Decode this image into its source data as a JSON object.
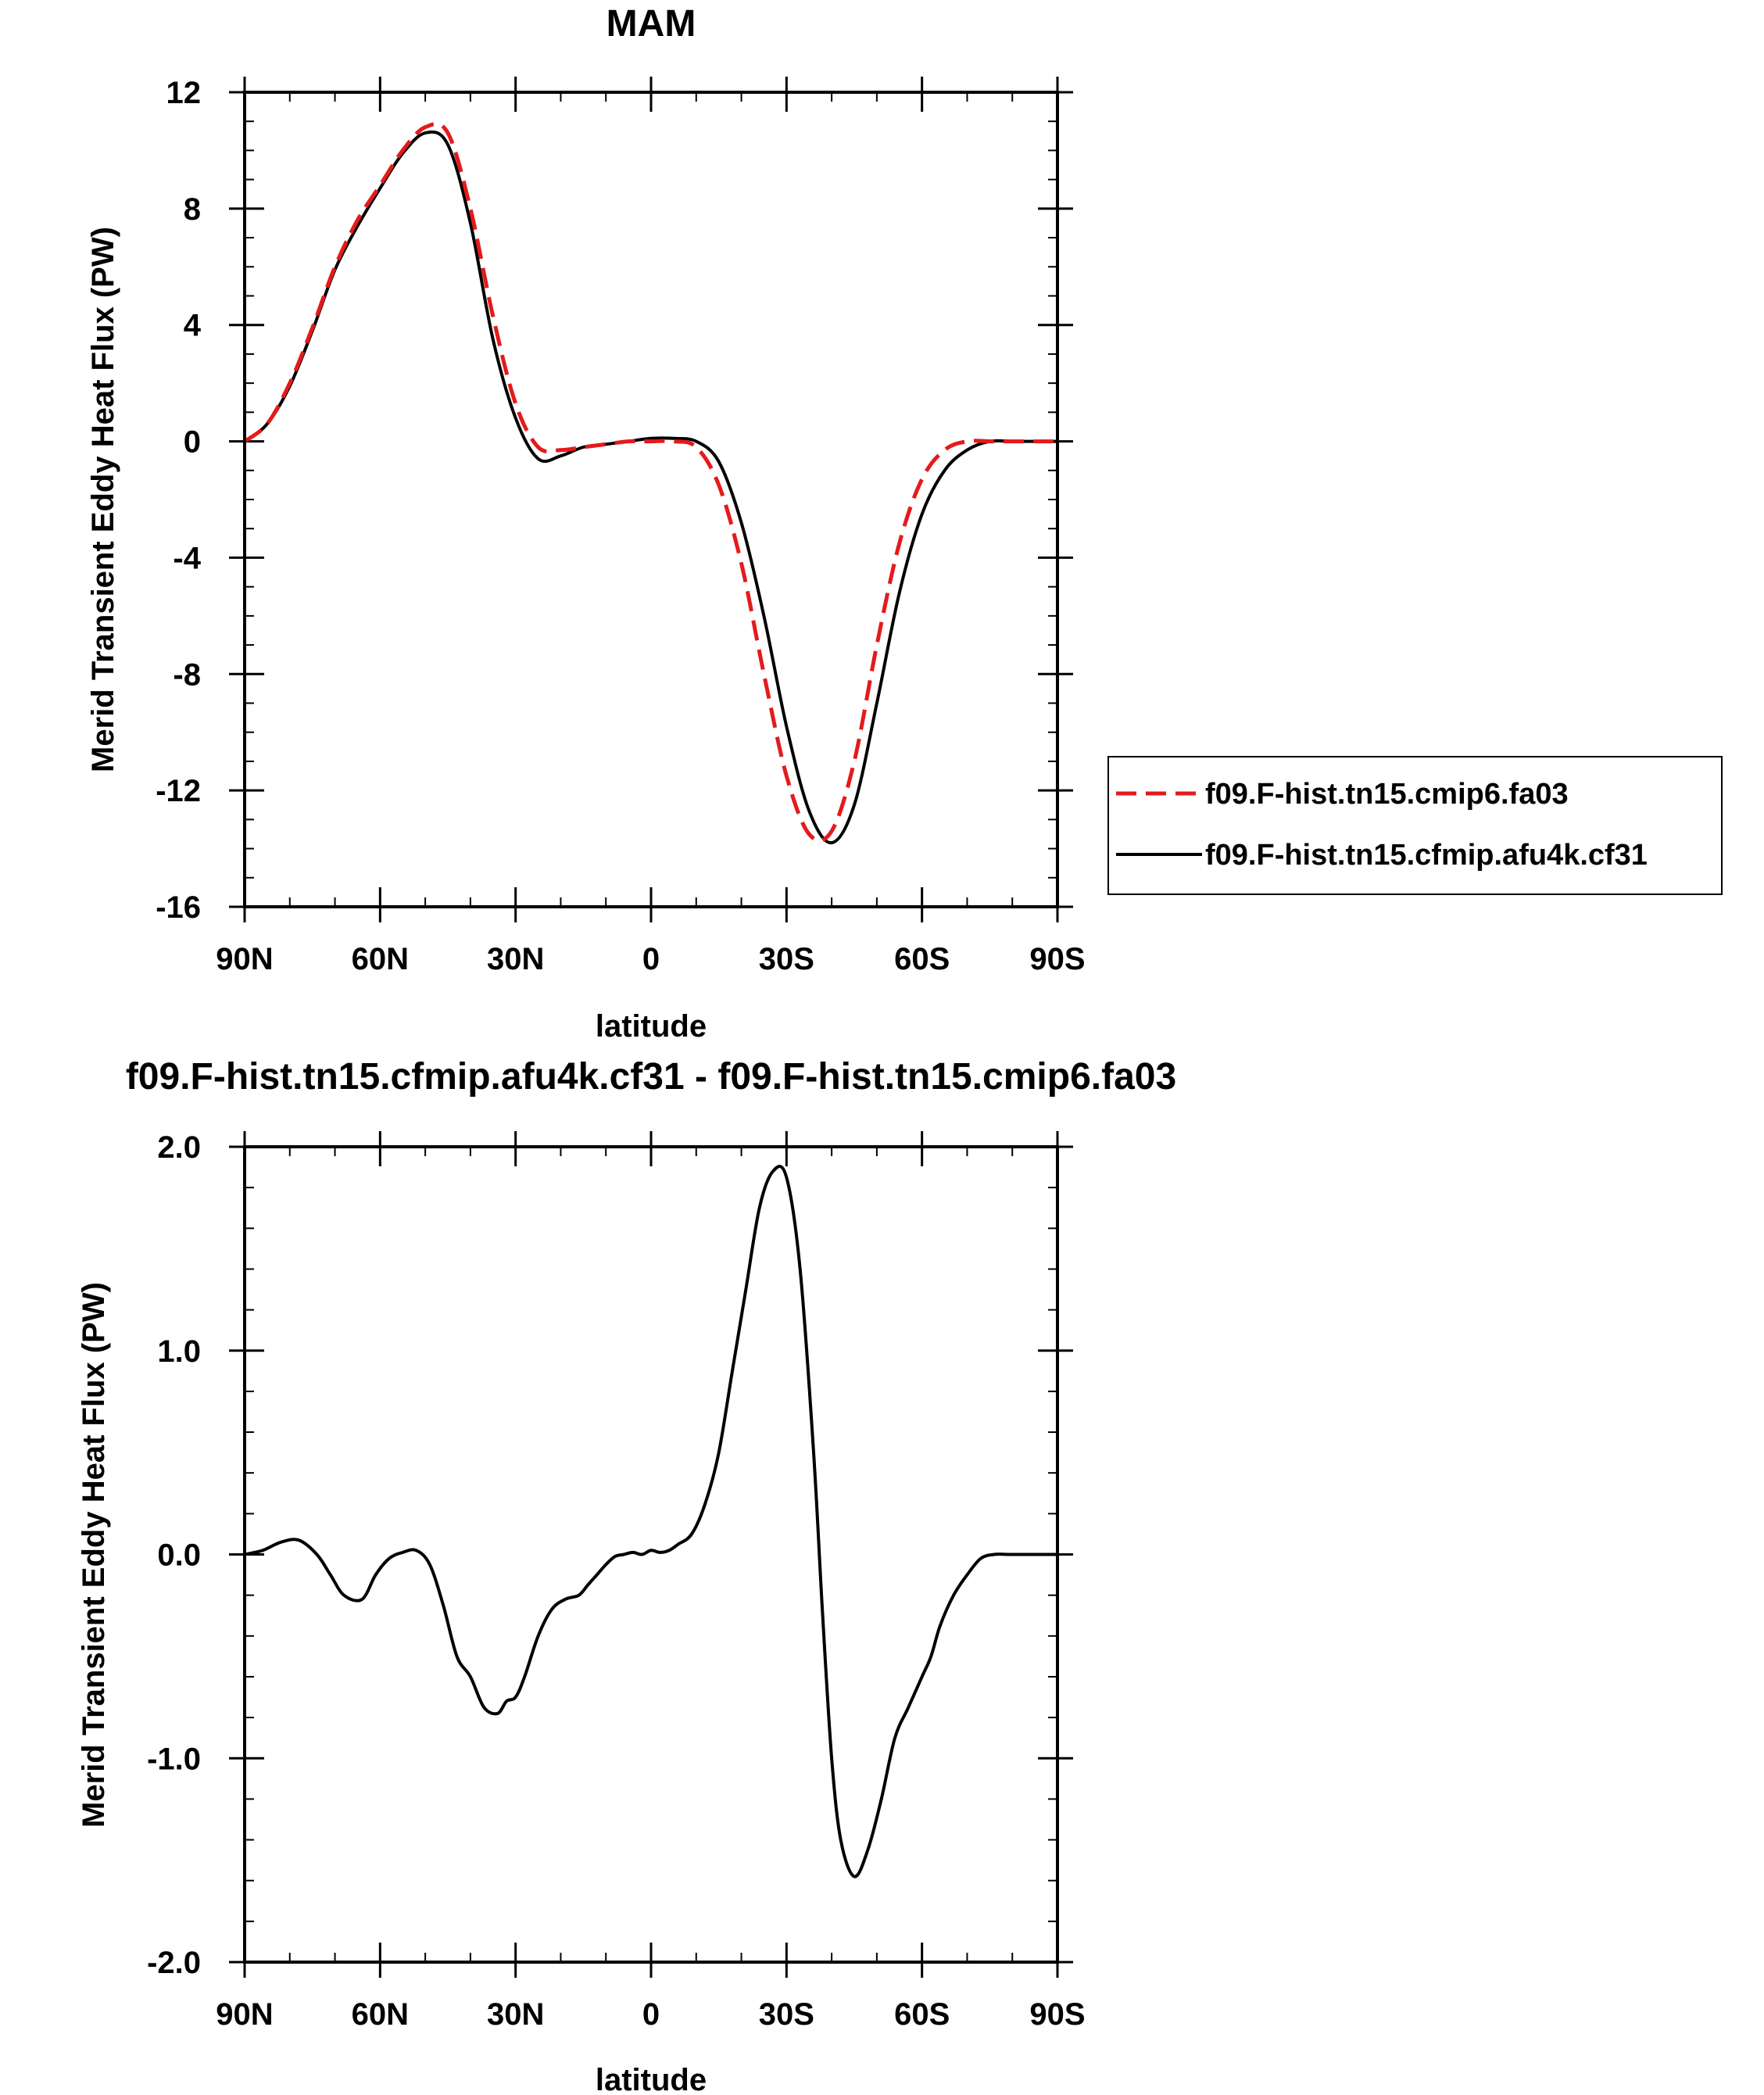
{
  "chart_data": [
    {
      "type": "line",
      "title": "MAM",
      "xlabel": "latitude",
      "ylabel": "Merid Transient Eddy Heat Flux (PW)",
      "xlim": [
        90,
        -90
      ],
      "ylim": [
        -16,
        12
      ],
      "x_ticks": [
        90,
        60,
        30,
        0,
        -30,
        -60,
        -90
      ],
      "x_tick_labels": [
        "90N",
        "60N",
        "30N",
        "0",
        "30S",
        "60S",
        "90S"
      ],
      "y_ticks": [
        12,
        8,
        4,
        0,
        -4,
        -8,
        -12,
        -16
      ],
      "y_tick_labels": [
        "12",
        "8",
        "4",
        "0",
        "-4",
        "-8",
        "-12",
        "-16"
      ],
      "grid": false,
      "legend_placement": "outside-right",
      "series": [
        {
          "name": "f09.F-hist.tn15.cmip6.fa03",
          "color": "#e41a1c",
          "style": "dashed",
          "x": [
            90,
            85,
            80,
            75,
            70,
            65,
            60,
            55,
            50,
            45,
            40,
            35,
            30,
            25,
            20,
            15,
            10,
            5,
            0,
            -5,
            -10,
            -15,
            -20,
            -25,
            -30,
            -35,
            -40,
            -45,
            -50,
            -55,
            -60,
            -65,
            -70,
            -75,
            -80,
            -85,
            -90
          ],
          "values": [
            0.0,
            0.6,
            2.0,
            3.9,
            6.0,
            7.6,
            8.8,
            10.0,
            10.8,
            10.6,
            8.0,
            4.3,
            1.3,
            -0.2,
            -0.3,
            -0.2,
            -0.1,
            0.0,
            0.0,
            0.0,
            -0.2,
            -1.5,
            -4.2,
            -8.0,
            -11.5,
            -13.5,
            -13.4,
            -11.0,
            -7.0,
            -3.5,
            -1.3,
            -0.3,
            0.0,
            0.0,
            0.0,
            0.0,
            0.0
          ]
        },
        {
          "name": "f09.F-hist.tn15.cfmip.afu4k.cf31",
          "color": "#000000",
          "style": "solid",
          "x": [
            90,
            85,
            80,
            75,
            70,
            65,
            60,
            55,
            50,
            45,
            40,
            35,
            30,
            25,
            20,
            15,
            10,
            5,
            0,
            -5,
            -10,
            -15,
            -20,
            -25,
            -30,
            -35,
            -40,
            -45,
            -50,
            -55,
            -60,
            -65,
            -70,
            -75,
            -80,
            -85,
            -90
          ],
          "values": [
            0.0,
            0.6,
            1.9,
            3.8,
            5.9,
            7.4,
            8.7,
            9.9,
            10.6,
            10.2,
            7.5,
            3.5,
            0.8,
            -0.6,
            -0.5,
            -0.2,
            -0.1,
            0.0,
            0.1,
            0.1,
            0.0,
            -0.7,
            -2.8,
            -6.0,
            -9.8,
            -12.7,
            -13.8,
            -12.5,
            -9.0,
            -5.2,
            -2.5,
            -1.0,
            -0.3,
            0.0,
            0.0,
            0.0,
            0.0
          ]
        }
      ]
    },
    {
      "type": "line",
      "title": "f09.F-hist.tn15.cfmip.afu4k.cf31 - f09.F-hist.tn15.cmip6.fa03",
      "xlabel": "latitude",
      "ylabel": "Merid Transient Eddy Heat Flux (PW)",
      "xlim": [
        90,
        -90
      ],
      "ylim": [
        -2.0,
        2.0
      ],
      "x_ticks": [
        90,
        60,
        30,
        0,
        -30,
        -60,
        -90
      ],
      "x_tick_labels": [
        "90N",
        "60N",
        "30N",
        "0",
        "30S",
        "60S",
        "90S"
      ],
      "y_ticks": [
        2.0,
        1.0,
        0.0,
        -1.0,
        -2.0
      ],
      "y_tick_labels": [
        "2.0",
        "1.0",
        "0.0",
        "-1.0",
        "-2.0"
      ],
      "grid": false,
      "series": [
        {
          "color": "#000000",
          "style": "solid",
          "x": [
            90,
            86,
            82,
            78,
            74,
            71,
            68,
            64,
            61,
            58,
            55,
            52,
            49,
            46,
            43,
            40,
            37,
            34,
            32,
            30,
            28,
            25,
            22,
            19,
            16,
            14,
            12,
            10,
            8,
            6,
            4,
            2,
            0,
            -2,
            -4,
            -6,
            -9,
            -12,
            -15,
            -18,
            -21,
            -24,
            -27,
            -30,
            -33,
            -36,
            -38,
            -40,
            -42,
            -45,
            -48,
            -51,
            -54,
            -57,
            -60,
            -62,
            -64,
            -67,
            -70,
            -73,
            -76,
            -79,
            -82,
            -85,
            -88,
            -90
          ],
          "values": [
            0.0,
            0.02,
            0.06,
            0.07,
            0.0,
            -0.1,
            -0.2,
            -0.22,
            -0.1,
            -0.02,
            0.01,
            0.02,
            -0.05,
            -0.25,
            -0.5,
            -0.6,
            -0.75,
            -0.78,
            -0.72,
            -0.7,
            -0.6,
            -0.4,
            -0.27,
            -0.22,
            -0.2,
            -0.15,
            -0.1,
            -0.05,
            -0.01,
            0.0,
            0.01,
            0.0,
            0.02,
            0.01,
            0.02,
            0.05,
            0.1,
            0.25,
            0.5,
            0.9,
            1.3,
            1.7,
            1.88,
            1.85,
            1.4,
            0.5,
            -0.3,
            -1.0,
            -1.4,
            -1.58,
            -1.45,
            -1.2,
            -0.9,
            -0.75,
            -0.6,
            -0.5,
            -0.35,
            -0.2,
            -0.1,
            -0.02,
            0.0,
            0.0,
            0.0,
            0.0,
            0.0,
            0.0
          ]
        }
      ]
    }
  ]
}
